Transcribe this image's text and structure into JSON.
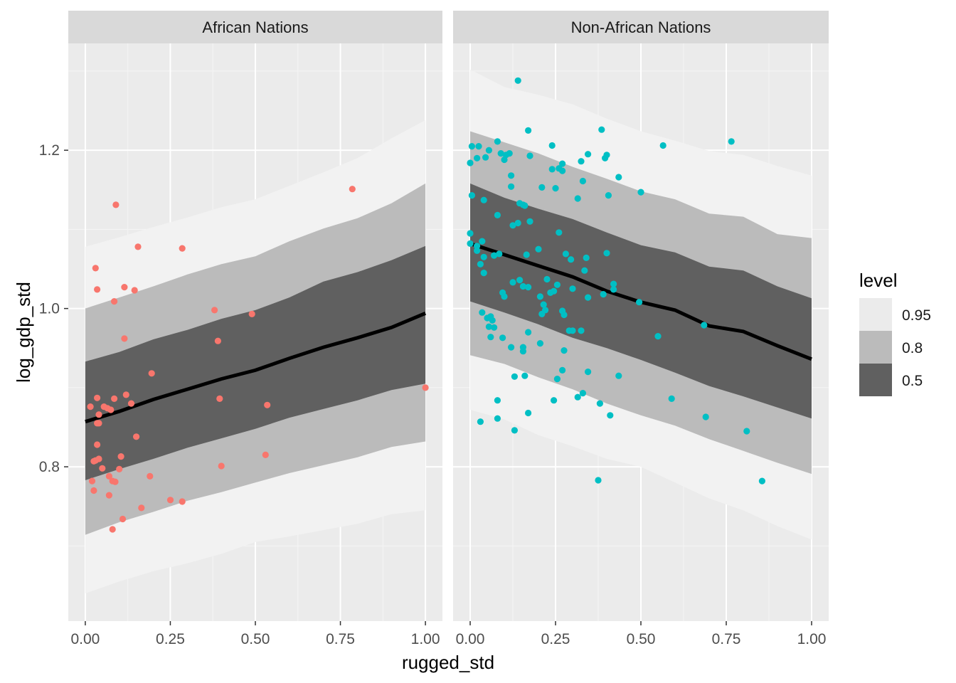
{
  "chart_data": {
    "type": "scatter",
    "xlabel": "rugged_std",
    "ylabel": "log_gdp_std",
    "xlim": [
      -0.05,
      1.05
    ],
    "ylim": [
      0.605,
      1.335
    ],
    "x_ticks": [
      0,
      0.25,
      0.5,
      0.75,
      1
    ],
    "x_tick_labels": [
      "0.00",
      "0.25",
      "0.50",
      "0.75",
      "1.00"
    ],
    "y_ticks": [
      0.8,
      1.0,
      1.2
    ],
    "y_tick_labels": [
      "0.8",
      "1.0",
      "1.2"
    ],
    "grid": true,
    "legend": {
      "title": "level",
      "position": "right",
      "entries": [
        {
          "label": "0.95",
          "color": "#ebebeb"
        },
        {
          "label": "0.8",
          "color": "#bbbbbb"
        },
        {
          "label": "0.5",
          "color": "#606060"
        }
      ]
    },
    "colors": {
      "panel_bg": "#ebebeb",
      "strip_bg": "#d9d9d9",
      "band_95": "#f2f2f2",
      "band_80": "#bbbbbb",
      "band_50": "#606060",
      "line": "#000000",
      "african_points": "#f8766d",
      "non_african_points": "#00bfc4"
    },
    "panels": [
      {
        "title": "African Nations",
        "point_color": "#f8766d",
        "band_x": [
          0,
          0.1,
          0.2,
          0.3,
          0.4,
          0.5,
          0.6,
          0.7,
          0.8,
          0.9,
          1.0
        ],
        "median": [
          0.857,
          0.87,
          0.885,
          0.898,
          0.911,
          0.922,
          0.937,
          0.951,
          0.963,
          0.976,
          0.994
        ],
        "band_50": {
          "lo": [
            0.783,
            0.797,
            0.81,
            0.824,
            0.836,
            0.848,
            0.862,
            0.873,
            0.884,
            0.897,
            0.905
          ],
          "hi": [
            0.933,
            0.945,
            0.961,
            0.973,
            0.987,
            0.998,
            1.014,
            1.034,
            1.046,
            1.061,
            1.079
          ]
        },
        "band_80": {
          "lo": [
            0.714,
            0.73,
            0.743,
            0.757,
            0.768,
            0.78,
            0.792,
            0.802,
            0.812,
            0.825,
            0.832
          ],
          "hi": [
            1.0,
            1.014,
            1.028,
            1.043,
            1.056,
            1.066,
            1.085,
            1.101,
            1.114,
            1.133,
            1.158
          ]
        },
        "band_95": {
          "lo": [
            0.64,
            0.655,
            0.668,
            0.678,
            0.69,
            0.705,
            0.712,
            0.72,
            0.728,
            0.74,
            0.745
          ],
          "hi": [
            1.078,
            1.09,
            1.103,
            1.115,
            1.128,
            1.138,
            1.155,
            1.172,
            1.19,
            1.215,
            1.238
          ]
        },
        "points": [
          [
            0.09,
            1.131
          ],
          [
            0.155,
            1.078
          ],
          [
            0.285,
            1.076
          ],
          [
            0.785,
            1.151
          ],
          [
            0.03,
            1.051
          ],
          [
            0.035,
            1.024
          ],
          [
            0.115,
            1.027
          ],
          [
            0.145,
            1.023
          ],
          [
            0.085,
            1.009
          ],
          [
            0.38,
            0.998
          ],
          [
            0.49,
            0.993
          ],
          [
            0.115,
            0.962
          ],
          [
            0.39,
            0.959
          ],
          [
            0.195,
            0.918
          ],
          [
            1.0,
            0.9
          ],
          [
            0.12,
            0.891
          ],
          [
            0.035,
            0.887
          ],
          [
            0.085,
            0.886
          ],
          [
            0.395,
            0.886
          ],
          [
            0.015,
            0.876
          ],
          [
            0.055,
            0.876
          ],
          [
            0.065,
            0.874
          ],
          [
            0.075,
            0.872
          ],
          [
            0.135,
            0.88
          ],
          [
            0.535,
            0.878
          ],
          [
            0.04,
            0.866
          ],
          [
            0.04,
            0.855
          ],
          [
            0.035,
            0.855
          ],
          [
            0.15,
            0.838
          ],
          [
            0.035,
            0.828
          ],
          [
            0.53,
            0.815
          ],
          [
            0.105,
            0.813
          ],
          [
            0.04,
            0.81
          ],
          [
            0.025,
            0.807
          ],
          [
            0.03,
            0.808
          ],
          [
            0.4,
            0.801
          ],
          [
            0.05,
            0.798
          ],
          [
            0.1,
            0.797
          ],
          [
            0.19,
            0.788
          ],
          [
            0.07,
            0.788
          ],
          [
            0.08,
            0.782
          ],
          [
            0.088,
            0.781
          ],
          [
            0.02,
            0.782
          ],
          [
            0.025,
            0.77
          ],
          [
            0.07,
            0.764
          ],
          [
            0.25,
            0.758
          ],
          [
            0.285,
            0.756
          ],
          [
            0.165,
            0.748
          ],
          [
            0.11,
            0.734
          ],
          [
            0.08,
            0.721
          ]
        ]
      },
      {
        "title": "Non-African Nations",
        "point_color": "#00bfc4",
        "band_x": [
          0,
          0.1,
          0.2,
          0.3,
          0.4,
          0.5,
          0.6,
          0.7,
          0.8,
          0.9,
          1.0
        ],
        "median": [
          1.082,
          1.068,
          1.054,
          1.04,
          1.022,
          1.008,
          0.998,
          0.978,
          0.971,
          0.953,
          0.936
        ],
        "band_50": {
          "lo": [
            1.009,
            0.995,
            0.98,
            0.963,
            0.95,
            0.935,
            0.919,
            0.902,
            0.889,
            0.875,
            0.861
          ],
          "hi": [
            1.158,
            1.14,
            1.126,
            1.113,
            1.096,
            1.08,
            1.071,
            1.053,
            1.048,
            1.028,
            1.013
          ]
        },
        "band_80": {
          "lo": [
            0.941,
            0.93,
            0.913,
            0.898,
            0.88,
            0.865,
            0.852,
            0.835,
            0.82,
            0.805,
            0.791
          ],
          "hi": [
            1.224,
            1.21,
            1.196,
            1.179,
            1.164,
            1.148,
            1.138,
            1.12,
            1.116,
            1.094,
            1.089
          ]
        },
        "band_95": {
          "lo": [
            0.872,
            0.86,
            0.84,
            0.826,
            0.81,
            0.8,
            0.78,
            0.76,
            0.745,
            0.725,
            0.708
          ],
          "hi": [
            1.302,
            1.28,
            1.27,
            1.258,
            1.24,
            1.224,
            1.212,
            1.199,
            1.194,
            1.18,
            1.168
          ]
        },
        "points": [
          [
            0.14,
            1.288
          ],
          [
            0.17,
            1.225
          ],
          [
            0.385,
            1.226
          ],
          [
            0.765,
            1.211
          ],
          [
            0.08,
            1.211
          ],
          [
            0.565,
            1.206
          ],
          [
            0.005,
            1.205
          ],
          [
            0.025,
            1.205
          ],
          [
            0.055,
            1.2
          ],
          [
            0.24,
            1.206
          ],
          [
            0.09,
            1.196
          ],
          [
            0.105,
            1.194
          ],
          [
            0.115,
            1.196
          ],
          [
            0.175,
            1.193
          ],
          [
            0.345,
            1.195
          ],
          [
            0.395,
            1.19
          ],
          [
            0.4,
            1.194
          ],
          [
            0.045,
            1.191
          ],
          [
            0.1,
            1.188
          ],
          [
            0.02,
            1.19
          ],
          [
            0.0,
            1.184
          ],
          [
            0.27,
            1.183
          ],
          [
            0.325,
            1.186
          ],
          [
            0.24,
            1.176
          ],
          [
            0.26,
            1.177
          ],
          [
            0.27,
            1.174
          ],
          [
            0.12,
            1.168
          ],
          [
            0.435,
            1.166
          ],
          [
            0.33,
            1.161
          ],
          [
            0.21,
            1.153
          ],
          [
            0.12,
            1.154
          ],
          [
            0.25,
            1.152
          ],
          [
            0.5,
            1.147
          ],
          [
            0.405,
            1.143
          ],
          [
            0.005,
            1.143
          ],
          [
            0.315,
            1.139
          ],
          [
            0.04,
            1.137
          ],
          [
            0.145,
            1.133
          ],
          [
            0.155,
            1.131
          ],
          [
            0.16,
            1.13
          ],
          [
            0.08,
            1.118
          ],
          [
            0.14,
            1.108
          ],
          [
            0.175,
            1.11
          ],
          [
            0.125,
            1.105
          ],
          [
            0.26,
            1.096
          ],
          [
            0.0,
            1.095
          ],
          [
            0.035,
            1.085
          ],
          [
            0.0,
            1.082
          ],
          [
            0.02,
            1.079
          ],
          [
            0.2,
            1.075
          ],
          [
            0.02,
            1.073
          ],
          [
            0.04,
            1.065
          ],
          [
            0.085,
            1.069
          ],
          [
            0.165,
            1.068
          ],
          [
            0.28,
            1.069
          ],
          [
            0.4,
            1.07
          ],
          [
            0.295,
            1.062
          ],
          [
            0.34,
            1.064
          ],
          [
            0.07,
            1.067
          ],
          [
            0.03,
            1.056
          ],
          [
            0.04,
            1.045
          ],
          [
            0.335,
            1.048
          ],
          [
            0.225,
            1.037
          ],
          [
            0.145,
            1.036
          ],
          [
            0.235,
            1.02
          ],
          [
            0.245,
            1.022
          ],
          [
            0.255,
            1.03
          ],
          [
            0.125,
            1.033
          ],
          [
            0.3,
            1.025
          ],
          [
            0.42,
            1.031
          ],
          [
            0.42,
            1.024
          ],
          [
            0.095,
            1.02
          ],
          [
            0.1,
            1.015
          ],
          [
            0.155,
            1.028
          ],
          [
            0.17,
            1.027
          ],
          [
            0.39,
            1.018
          ],
          [
            0.345,
            1.014
          ],
          [
            0.495,
            1.008
          ],
          [
            0.205,
            1.015
          ],
          [
            0.215,
            1.005
          ],
          [
            0.22,
            0.998
          ],
          [
            0.21,
            0.993
          ],
          [
            0.27,
            0.997
          ],
          [
            0.275,
            0.992
          ],
          [
            0.035,
            0.995
          ],
          [
            0.05,
            0.988
          ],
          [
            0.065,
            0.985
          ],
          [
            0.06,
            0.99
          ],
          [
            0.055,
            0.977
          ],
          [
            0.07,
            0.976
          ],
          [
            0.685,
            0.979
          ],
          [
            0.29,
            0.972
          ],
          [
            0.3,
            0.972
          ],
          [
            0.325,
            0.972
          ],
          [
            0.17,
            0.97
          ],
          [
            0.06,
            0.964
          ],
          [
            0.095,
            0.963
          ],
          [
            0.55,
            0.965
          ],
          [
            0.205,
            0.956
          ],
          [
            0.12,
            0.951
          ],
          [
            0.155,
            0.951
          ],
          [
            0.275,
            0.947
          ],
          [
            0.155,
            0.946
          ],
          [
            0.345,
            0.92
          ],
          [
            0.27,
            0.922
          ],
          [
            0.13,
            0.914
          ],
          [
            0.16,
            0.915
          ],
          [
            0.435,
            0.915
          ],
          [
            0.255,
            0.911
          ],
          [
            0.33,
            0.893
          ],
          [
            0.315,
            0.888
          ],
          [
            0.59,
            0.886
          ],
          [
            0.245,
            0.884
          ],
          [
            0.08,
            0.884
          ],
          [
            0.38,
            0.88
          ],
          [
            0.17,
            0.868
          ],
          [
            0.41,
            0.865
          ],
          [
            0.69,
            0.863
          ],
          [
            0.08,
            0.861
          ],
          [
            0.03,
            0.857
          ],
          [
            0.81,
            0.845
          ],
          [
            0.13,
            0.846
          ],
          [
            0.375,
            0.783
          ],
          [
            0.855,
            0.782
          ]
        ]
      }
    ]
  }
}
